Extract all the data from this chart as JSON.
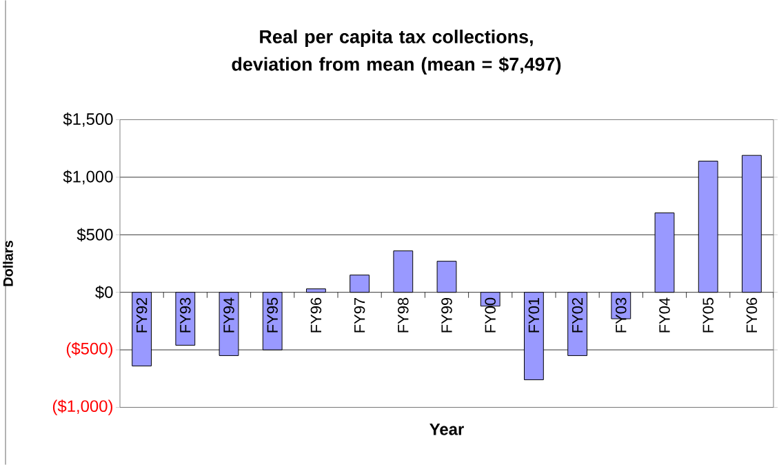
{
  "chart_data": {
    "type": "bar",
    "title": "Real per capita tax collections, deviation from mean (mean = $7,497)",
    "xlabel": "Year",
    "ylabel": "Dollars",
    "categories": [
      "FY92",
      "FY93",
      "FY94",
      "FY95",
      "FY96",
      "FY97",
      "FY98",
      "FY99",
      "FY00",
      "FY01",
      "FY02",
      "FY03",
      "FY04",
      "FY05",
      "FY06"
    ],
    "values": [
      -640,
      -460,
      -550,
      -500,
      30,
      150,
      360,
      270,
      -120,
      -760,
      -550,
      -230,
      690,
      1140,
      1190
    ],
    "color": "#9999ff",
    "ylim": [
      -1000,
      1500
    ],
    "yticks": [
      {
        "value": -1000,
        "label": "($1,000)"
      },
      {
        "value": -500,
        "label": "($500)"
      },
      {
        "value": 0,
        "label": "$0"
      },
      {
        "value": 500,
        "label": "$500"
      },
      {
        "value": 1000,
        "label": "$1,000"
      },
      {
        "value": 1500,
        "label": "$1,500"
      }
    ],
    "grid": "y"
  }
}
